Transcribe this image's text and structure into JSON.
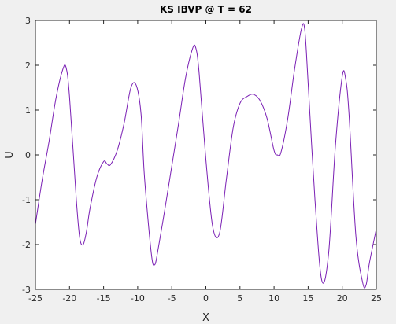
{
  "chart_data": {
    "type": "line",
    "title": "KS IBVP @ T = 62",
    "xlabel": "X",
    "ylabel": "U",
    "xlim": [
      -25,
      25
    ],
    "ylim": [
      -3,
      3
    ],
    "xticks": [
      -25,
      -20,
      -15,
      -10,
      -5,
      0,
      5,
      10,
      15,
      20,
      25
    ],
    "yticks": [
      -3,
      -2,
      -1,
      0,
      1,
      2,
      3
    ],
    "grid": false,
    "line_color": "#7a1fb4",
    "series": [
      {
        "x": [
          -25,
          -24,
          -23,
          -22,
          -21,
          -20.5,
          -20,
          -19,
          -18.5,
          -18,
          -17.5,
          -17,
          -16,
          -15,
          -14.5,
          -14,
          -13,
          -12,
          -11,
          -10.2,
          -9.5,
          -9,
          -8,
          -7.5,
          -7,
          -6,
          -5,
          -4,
          -3,
          -2,
          -1.5,
          -1,
          0,
          1,
          2,
          3,
          4,
          5,
          6,
          7,
          8,
          9,
          10,
          10.5,
          11,
          12,
          13,
          14,
          14.5,
          15,
          16,
          17,
          18,
          19,
          20,
          20.5,
          21,
          22,
          23,
          23.5,
          24,
          25
        ],
        "y": [
          -1.55,
          -0.55,
          0.3,
          1.25,
          1.9,
          1.95,
          1.3,
          -1.0,
          -1.85,
          -2.0,
          -1.7,
          -1.2,
          -0.5,
          -0.15,
          -0.2,
          -0.22,
          0.1,
          0.7,
          1.5,
          1.55,
          0.9,
          -0.5,
          -2.2,
          -2.45,
          -2.1,
          -1.2,
          -0.25,
          0.7,
          1.7,
          2.35,
          2.4,
          1.85,
          -0.1,
          -1.6,
          -1.75,
          -0.55,
          0.6,
          1.15,
          1.3,
          1.35,
          1.2,
          0.8,
          0.1,
          0.0,
          0.05,
          0.8,
          1.9,
          2.8,
          2.8,
          1.6,
          -1.0,
          -2.8,
          -2.2,
          0.2,
          1.75,
          1.7,
          0.9,
          -1.8,
          -2.85,
          -2.9,
          -2.4,
          -1.65
        ]
      }
    ]
  }
}
